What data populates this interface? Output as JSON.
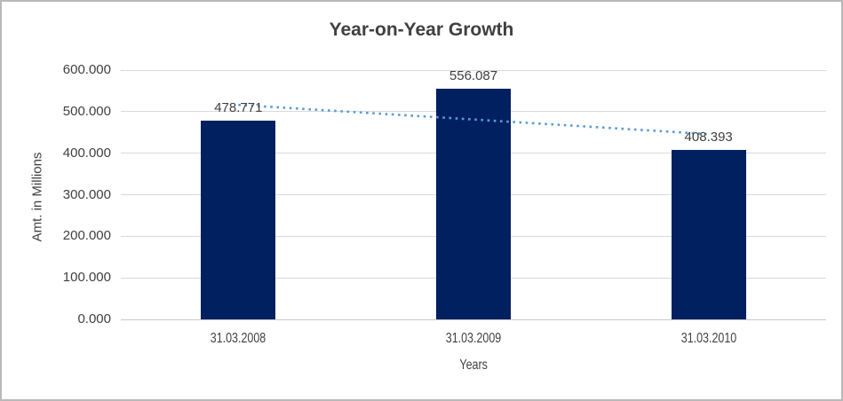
{
  "chart_data": {
    "type": "bar",
    "title": "Year-on-Year Growth",
    "xlabel": "Years",
    "ylabel": "Amt. in Millions",
    "categories": [
      "31.03.2008",
      "31.03.2009",
      "31.03.2010"
    ],
    "values": [
      478.771,
      556.087,
      408.393
    ],
    "value_labels": [
      "478.771",
      "556.087",
      "408.393"
    ],
    "ylim": [
      0,
      600
    ],
    "ytick_step": 100,
    "ytick_labels": [
      "0.000",
      "100.000",
      "200.000",
      "300.000",
      "400.000",
      "500.000",
      "600.000"
    ],
    "grid": true,
    "legend": "none",
    "bar_color": "#002060",
    "gridline_color": "#d9d9d9",
    "text_color": "#404040",
    "trendline": {
      "type": "linear",
      "style": "dotted",
      "color": "#5b9bd5",
      "start_value": 516.3,
      "end_value": 445.9
    }
  }
}
